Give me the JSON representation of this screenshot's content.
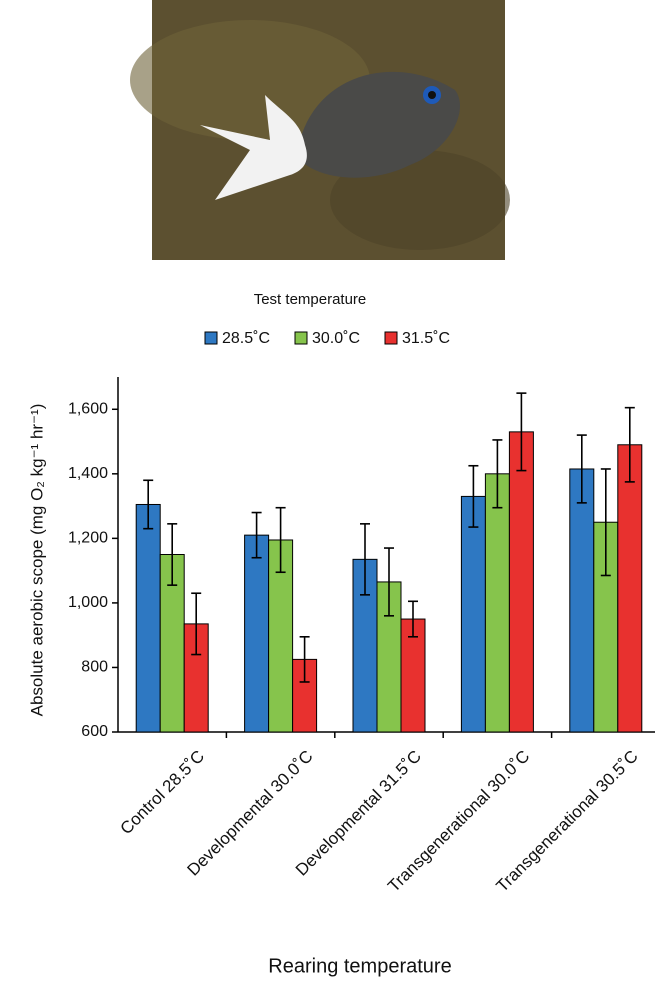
{
  "chart_data": {
    "type": "bar",
    "legend_title": "Test temperature",
    "ylabel": "Absolute aerobic scope (mg O₂ kg⁻¹ hr⁻¹)",
    "xlabel": "Rearing temperature",
    "categories": [
      "Control 28.5˚C",
      "Developmental 30.0˚C",
      "Developmental 31.5˚C",
      "Transgenerational 30.0˚C",
      "Transgenerational 30.5˚C"
    ],
    "series": [
      {
        "name": "28.5˚C",
        "color": "#2e78c2",
        "values": [
          1305,
          1210,
          1135,
          1330,
          1415
        ],
        "errors": [
          75,
          70,
          110,
          95,
          105
        ]
      },
      {
        "name": "30.0˚C",
        "color": "#86c44c",
        "values": [
          1150,
          1195,
          1065,
          1400,
          1250
        ],
        "errors": [
          95,
          100,
          105,
          105,
          165
        ]
      },
      {
        "name": "31.5˚C",
        "color": "#e8312f",
        "values": [
          935,
          825,
          950,
          1530,
          1490
        ],
        "errors": [
          95,
          70,
          55,
          120,
          115
        ]
      }
    ],
    "ylim": [
      600,
      1700
    ],
    "yticks": [
      600,
      800,
      {
        "value": 1000,
        "label": "1,000"
      },
      {
        "value": 1200,
        "label": "1,200"
      },
      {
        "value": 1400,
        "label": "1,400"
      },
      {
        "value": 1600,
        "label": "1,600"
      }
    ]
  }
}
